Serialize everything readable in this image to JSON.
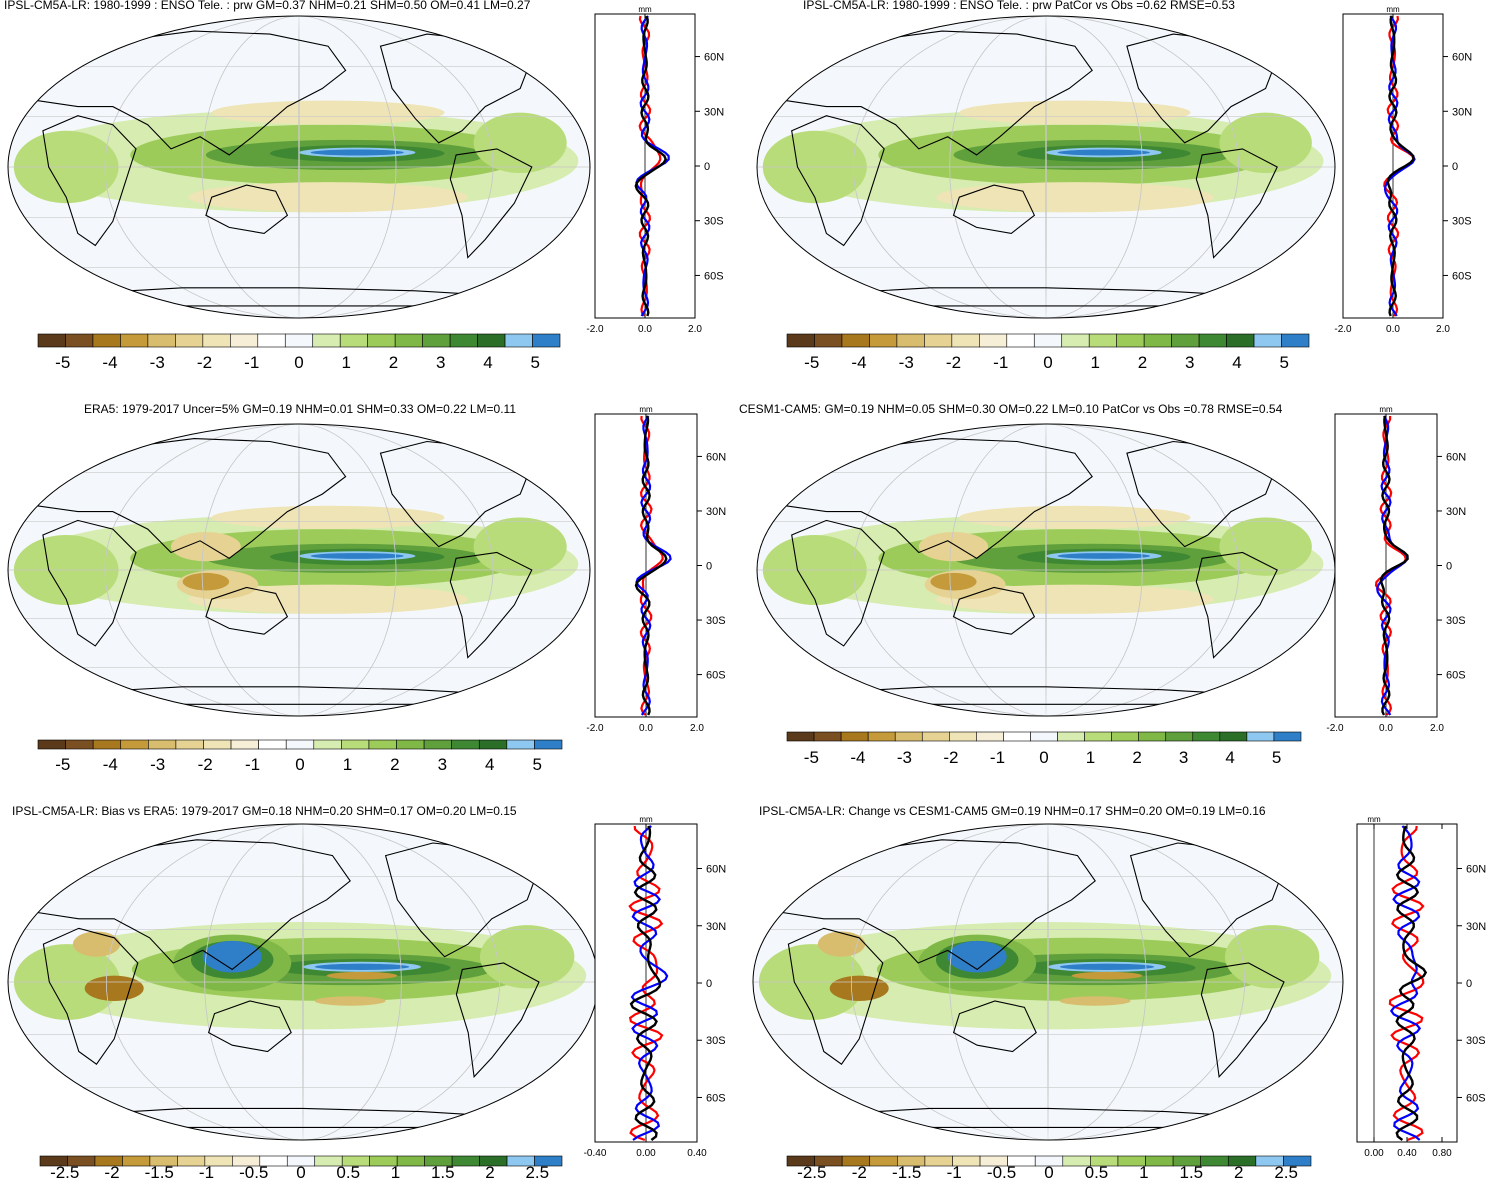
{
  "panels": [
    {
      "id": "p1",
      "title": "IPSL-CM5A-LR: 1980-1999 : ENSO Tele. : prw GM=0.37 NHM=0.21 SHM=0.50 OM=0.41 LM=0.27",
      "colorbar_labels": [
        "-5",
        "-4",
        "-3",
        "-2",
        "-1",
        "0",
        "1",
        "2",
        "3",
        "4",
        "5"
      ],
      "zonal_unit": "mm",
      "zonal_lat_labels": [
        "60N",
        "30N",
        "0",
        "30S",
        "60S"
      ],
      "zonal_x_labels": [
        "-2.0",
        "0.0",
        "2.0"
      ],
      "features": {
        "south_asia_dry": false,
        "coral_sea_dry": false,
        "dry_bands": true,
        "indo_wet": false
      }
    },
    {
      "id": "p2",
      "title": "IPSL-CM5A-LR: 1980-1999 : ENSO Tele. : prw PatCor vs Obs =0.62 RMSE=0.53",
      "colorbar_labels": [
        "-5",
        "-4",
        "-3",
        "-2",
        "-1",
        "0",
        "1",
        "2",
        "3",
        "4",
        "5"
      ],
      "zonal_unit": "mm",
      "zonal_lat_labels": [
        "60N",
        "30N",
        "0",
        "30S",
        "60S"
      ],
      "zonal_x_labels": [
        "-2.0",
        "0.0",
        "2.0"
      ],
      "features": {
        "south_asia_dry": false,
        "coral_sea_dry": false,
        "dry_bands": true,
        "indo_wet": false
      }
    },
    {
      "id": "p3",
      "title": "ERA5: 1979-2017 Uncer=5% GM=0.19 NHM=0.01 SHM=0.33 OM=0.22 LM=0.11",
      "colorbar_labels": [
        "-5",
        "-4",
        "-3",
        "-2",
        "-1",
        "0",
        "1",
        "2",
        "3",
        "4",
        "5"
      ],
      "zonal_unit": "mm",
      "zonal_lat_labels": [
        "60N",
        "30N",
        "0",
        "30S",
        "60S"
      ],
      "zonal_x_labels": [
        "-2.0",
        "0.0",
        "2.0"
      ],
      "features": {
        "south_asia_dry": true,
        "coral_sea_dry": true,
        "dry_bands": true,
        "indo_wet": false
      }
    },
    {
      "id": "p4",
      "title": "CESM1-CAM5: GM=0.19 NHM=0.05 SHM=0.30 OM=0.22 LM=0.10 PatCor vs Obs =0.78 RMSE=0.54",
      "colorbar_labels": [
        "-5",
        "-4",
        "-3",
        "-2",
        "-1",
        "0",
        "1",
        "2",
        "3",
        "4",
        "5"
      ],
      "zonal_unit": "mm",
      "zonal_lat_labels": [
        "60N",
        "30N",
        "0",
        "30S",
        "60S"
      ],
      "zonal_x_labels": [
        "-2.0",
        "0.0",
        "2.0"
      ],
      "features": {
        "south_asia_dry": true,
        "coral_sea_dry": true,
        "dry_bands": true,
        "indo_wet": false
      }
    },
    {
      "id": "p5",
      "title": "IPSL-CM5A-LR: Bias vs ERA5: 1979-2017 GM=0.18 NHM=0.20 SHM=0.17 OM=0.20 LM=0.15",
      "colorbar_labels": [
        "-2.5",
        "-2",
        "-1.5",
        "-1",
        "-0.5",
        "0",
        "0.5",
        "1",
        "1.5",
        "2",
        "2.5"
      ],
      "zonal_unit": "mm",
      "zonal_lat_labels": [
        "60N",
        "30N",
        "0",
        "30S",
        "60S"
      ],
      "zonal_x_labels": [
        "-0.40",
        "0.00",
        "0.40"
      ],
      "features": {
        "south_asia_dry": false,
        "coral_sea_dry": false,
        "dry_bands": false,
        "indo_wet": true
      }
    },
    {
      "id": "p6",
      "title": "IPSL-CM5A-LR: Change vs CESM1-CAM5 GM=0.19 NHM=0.17 SHM=0.20 OM=0.19 LM=0.16",
      "colorbar_labels": [
        "-2.5",
        "-2",
        "-1.5",
        "-1",
        "-0.5",
        "0",
        "0.5",
        "1",
        "1.5",
        "2",
        "2.5"
      ],
      "zonal_unit": "mm",
      "zonal_lat_labels": [
        "60N",
        "30N",
        "0",
        "30S",
        "60S"
      ],
      "zonal_x_labels": [
        "0.00",
        "0.40",
        "0.80"
      ],
      "features": {
        "south_asia_dry": false,
        "coral_sea_dry": false,
        "dry_bands": false,
        "indo_wet": true
      }
    }
  ],
  "colors": {
    "palette": [
      "#5a3a1a",
      "#7a4f22",
      "#a8781e",
      "#c49a3a",
      "#d8bd6e",
      "#e6d394",
      "#efe4b6",
      "#f6eed6",
      "#ffffff",
      "#f4f8fc",
      "#d7ecb0",
      "#b9dc7a",
      "#9ccb5a",
      "#80b848",
      "#5f9f3c",
      "#3f8833",
      "#2a6e28",
      "#8ec8f0",
      "#2f7fc8"
    ],
    "ocean_background": "#f4f8fc",
    "model_line": "#ff0000",
    "obs_line": "#0000ff",
    "mean_line": "#000000"
  }
}
